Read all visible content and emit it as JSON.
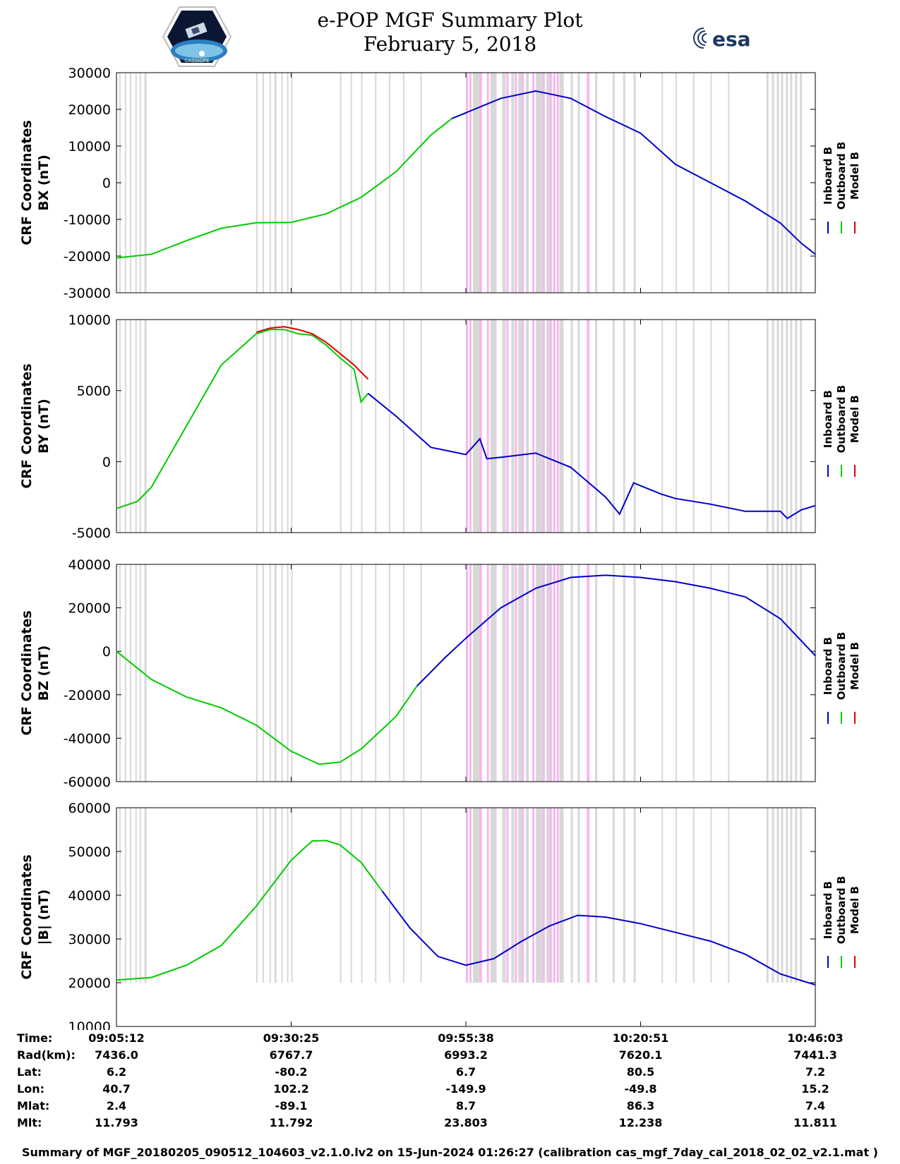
{
  "header": {
    "title": "e-POP MGF Summary Plot",
    "date": "February 5, 2018",
    "left_logo": "cassiope-mission-logo",
    "left_logo_text": "CASSIOPE",
    "right_logo": "esa-logo",
    "right_logo_text": "esa"
  },
  "colors": {
    "inboard": "#0000cc",
    "outboard": "#00cc00",
    "model": "#dd0000",
    "gap_gray": "#d8d8d8",
    "gap_pink": "#f7b6f2"
  },
  "legend": [
    "Inboard B",
    "Outboard B",
    "Model B"
  ],
  "chart_data": [
    {
      "type": "line",
      "title": "",
      "ylabel": [
        "CRF Coordinates",
        "BX (nT)"
      ],
      "ylim": [
        -30000,
        30000
      ],
      "yticks": [
        30000,
        20000,
        10000,
        0,
        -10000,
        -20000,
        -30000
      ],
      "ytick_labels": [
        "30000",
        "20000",
        "10000",
        "0",
        "-10000",
        "-20000",
        "-30000"
      ],
      "xlim_min": [
        0,
        100
      ],
      "series": [
        {
          "name": "Outboard B",
          "color": "#00cc00",
          "x": [
            0,
            5,
            10,
            15,
            20,
            25,
            30,
            35,
            40,
            45,
            48,
            50
          ],
          "y": [
            -20500,
            -19500,
            -15800,
            -12400,
            -10900,
            -10800,
            -8500,
            -4000,
            3000,
            13000,
            17500,
            19000
          ]
        },
        {
          "name": "Inboard B",
          "color": "#0000cc",
          "x": [
            48,
            55,
            60,
            65,
            70,
            75,
            80,
            85,
            90,
            95,
            98,
            100
          ],
          "y": [
            17500,
            23000,
            25000,
            23000,
            18000,
            13500,
            5000,
            0,
            -5000,
            -11000,
            -16500,
            -19500
          ]
        }
      ]
    },
    {
      "type": "line",
      "ylabel": [
        "CRF Coordinates",
        "BY (nT)"
      ],
      "ylim": [
        -5000,
        10000
      ],
      "yticks": [
        10000,
        5000,
        0,
        -5000
      ],
      "ytick_labels": [
        "10000",
        "5000",
        "0",
        "-5000"
      ],
      "series": [
        {
          "name": "Model B",
          "color": "#dd0000",
          "x": [
            20,
            22,
            24,
            26,
            28,
            30,
            32,
            34,
            36
          ],
          "y": [
            9100,
            9400,
            9500,
            9300,
            9000,
            8400,
            7600,
            6800,
            5800
          ]
        },
        {
          "name": "Outboard B",
          "color": "#00cc00",
          "x": [
            0,
            3,
            5,
            10,
            15,
            20,
            22,
            24,
            26,
            28,
            30,
            32,
            34,
            35,
            36
          ],
          "y": [
            -3300,
            -2800,
            -1800,
            2500,
            6800,
            9000,
            9300,
            9300,
            9000,
            8900,
            8200,
            7300,
            6500,
            4200,
            4800
          ]
        },
        {
          "name": "Inboard B",
          "color": "#0000cc",
          "x": [
            36,
            40,
            45,
            50,
            52,
            53,
            55,
            60,
            65,
            70,
            72,
            74,
            76,
            78,
            80,
            85,
            90,
            95,
            96,
            98,
            100
          ],
          "y": [
            4800,
            3200,
            1000,
            500,
            1600,
            200,
            300,
            600,
            -400,
            -2500,
            -3700,
            -1500,
            -1900,
            -2300,
            -2600,
            -3000,
            -3500,
            -3500,
            -4000,
            -3400,
            -3100
          ]
        }
      ]
    },
    {
      "type": "line",
      "ylabel": [
        "CRF Coordinates",
        "BZ (nT)"
      ],
      "ylim": [
        -60000,
        40000
      ],
      "yticks": [
        40000,
        20000,
        0,
        -20000,
        -40000,
        -60000
      ],
      "ytick_labels": [
        "40000",
        "20000",
        "0",
        "-20000",
        "-40000",
        "-60000"
      ],
      "series": [
        {
          "name": "Outboard B",
          "color": "#00cc00",
          "x": [
            0,
            5,
            10,
            15,
            20,
            25,
            29,
            32,
            35,
            40,
            43
          ],
          "y": [
            0,
            -13000,
            -21000,
            -26000,
            -34000,
            -46000,
            -52000,
            -51000,
            -45000,
            -30000,
            -16000
          ]
        },
        {
          "name": "Inboard B",
          "color": "#0000cc",
          "x": [
            43,
            47,
            50,
            55,
            60,
            65,
            70,
            75,
            80,
            85,
            90,
            95,
            100
          ],
          "y": [
            -16000,
            -3000,
            6000,
            20000,
            29000,
            34000,
            35000,
            34000,
            32000,
            29000,
            25000,
            15000,
            -2000
          ]
        }
      ]
    },
    {
      "type": "line",
      "ylabel": [
        "CRF Coordinates",
        "|B| (nT)"
      ],
      "ylim": [
        10000,
        60000
      ],
      "yticks": [
        60000,
        50000,
        40000,
        30000,
        20000,
        10000
      ],
      "ytick_labels": [
        "60000",
        "50000",
        "40000",
        "30000",
        "20000",
        "10000"
      ],
      "series": [
        {
          "name": "Outboard B",
          "color": "#00cc00",
          "x": [
            0,
            5,
            10,
            15,
            20,
            25,
            28,
            30,
            32,
            35,
            38
          ],
          "y": [
            20600,
            21200,
            24000,
            28500,
            37500,
            48000,
            52400,
            52500,
            51500,
            47500,
            41000
          ]
        },
        {
          "name": "Inboard B",
          "color": "#0000cc",
          "x": [
            38,
            42,
            46,
            50,
            54,
            58,
            62,
            66,
            70,
            75,
            80,
            85,
            90,
            95,
            100
          ],
          "y": [
            41000,
            32500,
            26000,
            24000,
            25500,
            29500,
            33000,
            35400,
            35000,
            33500,
            31500,
            29500,
            26500,
            22000,
            19500
          ]
        }
      ]
    }
  ],
  "x_ticks": [
    "09:05:12",
    "09:30:25",
    "09:55:38",
    "10:20:51",
    "10:46:03"
  ],
  "info_table": {
    "rows": [
      {
        "label": "Time:",
        "values": [
          "09:05:12",
          "09:30:25",
          "09:55:38",
          "10:20:51",
          "10:46:03"
        ]
      },
      {
        "label": "Rad(km):",
        "values": [
          "7436.0",
          "6767.7",
          "6993.2",
          "7620.1",
          "7441.3"
        ]
      },
      {
        "label": "Lat:",
        "values": [
          "6.2",
          "-80.2",
          "6.7",
          "80.5",
          "7.2"
        ]
      },
      {
        "label": "Lon:",
        "values": [
          "40.7",
          "102.2",
          "-149.9",
          "-49.8",
          "15.2"
        ]
      },
      {
        "label": "Mlat:",
        "values": [
          "2.4",
          "-89.1",
          "8.7",
          "86.3",
          "7.4"
        ]
      },
      {
        "label": "Mlt:",
        "values": [
          "11.793",
          "11.792",
          "23.803",
          "12.238",
          "11.811"
        ]
      }
    ]
  },
  "footer": "Summary of MGF_20180205_090512_104603_v2.1.0.lv2 on 15-Jun-2024 01:26:27 (calibration cas_mgf_7day_cal_2018_02_02_v2.1.mat )"
}
